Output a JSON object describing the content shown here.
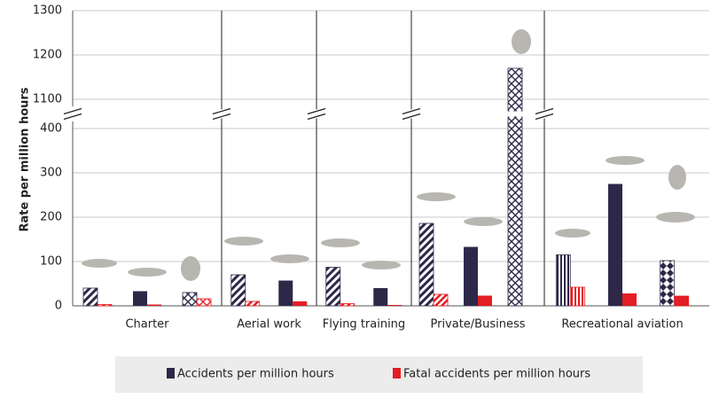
{
  "chart_data": {
    "type": "bar",
    "y_label": "Rate per million hours",
    "ylim": [
      0,
      1300
    ],
    "ybreak": [
      400,
      1100
    ],
    "yticks": [
      0,
      100,
      200,
      300,
      400,
      1100,
      1200,
      1300
    ],
    "grid": true,
    "series": [
      {
        "name": "Accidents per million hours",
        "color": "#2e2848"
      },
      {
        "name": "Fatal accidents per million hours",
        "color": "#e31e24"
      }
    ],
    "groups": [
      {
        "label": "Charter",
        "accidents": [
          40,
          33,
          30
        ],
        "fatal": [
          3,
          3,
          16
        ],
        "fills": [
          "diag",
          "solid",
          "cross"
        ]
      },
      {
        "label": "Aerial work",
        "accidents": [
          70,
          57
        ],
        "fatal": [
          10,
          10
        ],
        "fills": [
          "diag",
          "solid"
        ]
      },
      {
        "label": "Flying training",
        "accidents": [
          87,
          40
        ],
        "fatal": [
          5,
          2
        ],
        "fills": [
          "diag",
          "solid"
        ]
      },
      {
        "label": "Private/Business",
        "accidents": [
          186,
          133,
          1170
        ],
        "fatal": [
          26,
          23,
          null
        ],
        "fills": [
          "diag",
          "solid",
          "cross"
        ]
      },
      {
        "label": "Recreational aviation",
        "accidents": [
          115,
          275,
          102
        ],
        "fatal": [
          42,
          28,
          22
        ],
        "fills": [
          "vert",
          "solid",
          "diamond"
        ]
      }
    ]
  }
}
